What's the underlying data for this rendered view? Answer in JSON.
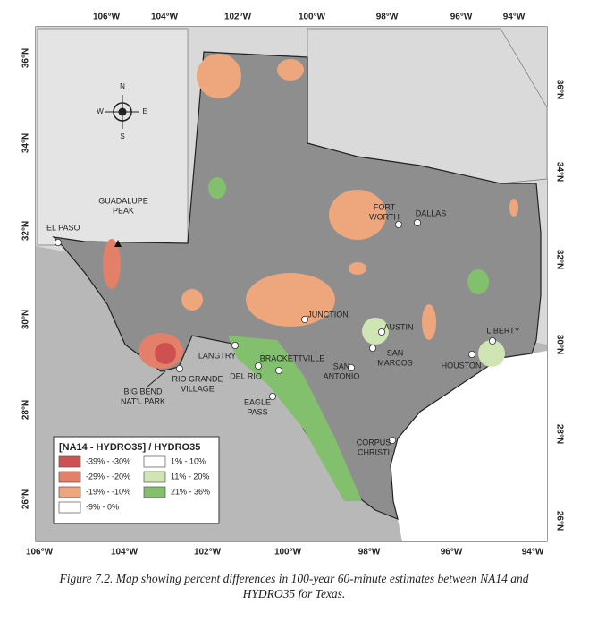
{
  "map": {
    "lon_labels_top": [
      "106°W",
      "104°W",
      "102°W",
      "100°W",
      "98°W",
      "96°W",
      "94°W"
    ],
    "lon_labels_bottom": [
      "106°W",
      "104°W",
      "102°W",
      "100°W",
      "98°W",
      "96°W",
      "94°W"
    ],
    "lat_labels_left": [
      "36°N",
      "34°N",
      "32°N",
      "30°N",
      "28°N",
      "26°N"
    ],
    "lat_labels_right": [
      "36°N",
      "34°N",
      "32°N",
      "30°N",
      "28°N",
      "26°N"
    ],
    "compass": [
      "N",
      "E",
      "S",
      "W"
    ],
    "places": [
      {
        "lines": [
          "EL PASO"
        ]
      },
      {
        "lines": [
          "GUADALUPE",
          "PEAK"
        ]
      },
      {
        "lines": [
          "FORT",
          "WORTH"
        ]
      },
      {
        "lines": [
          "DALLAS"
        ]
      },
      {
        "lines": [
          "JUNCTION"
        ]
      },
      {
        "lines": [
          "AUSTIN"
        ]
      },
      {
        "lines": [
          "SAN",
          "MARCOS"
        ]
      },
      {
        "lines": [
          "SAN",
          "ANTONIO"
        ]
      },
      {
        "lines": [
          "HOUSTON"
        ]
      },
      {
        "lines": [
          "LIBERTY"
        ]
      },
      {
        "lines": [
          "LANGTRY"
        ]
      },
      {
        "lines": [
          "DEL RIO"
        ]
      },
      {
        "lines": [
          "BRACKETTVILLE"
        ]
      },
      {
        "lines": [
          "EAGLE",
          "PASS"
        ]
      },
      {
        "lines": [
          "RIO GRANDE",
          "VILLAGE"
        ]
      },
      {
        "lines": [
          "BIG BEND",
          "NAT'L PARK"
        ]
      },
      {
        "lines": [
          "CORPUS",
          "CHRISTI"
        ]
      }
    ],
    "legend": {
      "title": "[NA14 - HYDRO35] / HYDRO35",
      "entries": [
        {
          "label": "-39% - -30%",
          "color": "#cf5050"
        },
        {
          "label": "-29% - -20%",
          "color": "#e2806a"
        },
        {
          "label": "-19% - -10%",
          "color": "#eea67c"
        },
        {
          "label": "-9% - 0%",
          "color": "#ffffff"
        },
        {
          "label": "1% - 10%",
          "color": "#ffffff"
        },
        {
          "label": "11% - 20%",
          "color": "#cfe6b4"
        },
        {
          "label": "21% - 36%",
          "color": "#82c06e"
        }
      ]
    }
  },
  "caption": {
    "lines": [
      "Figure 7.2. Map showing percent differences in 100-year 60-minute estimates between NA14 and",
      "HYDRO35 for Texas."
    ]
  }
}
